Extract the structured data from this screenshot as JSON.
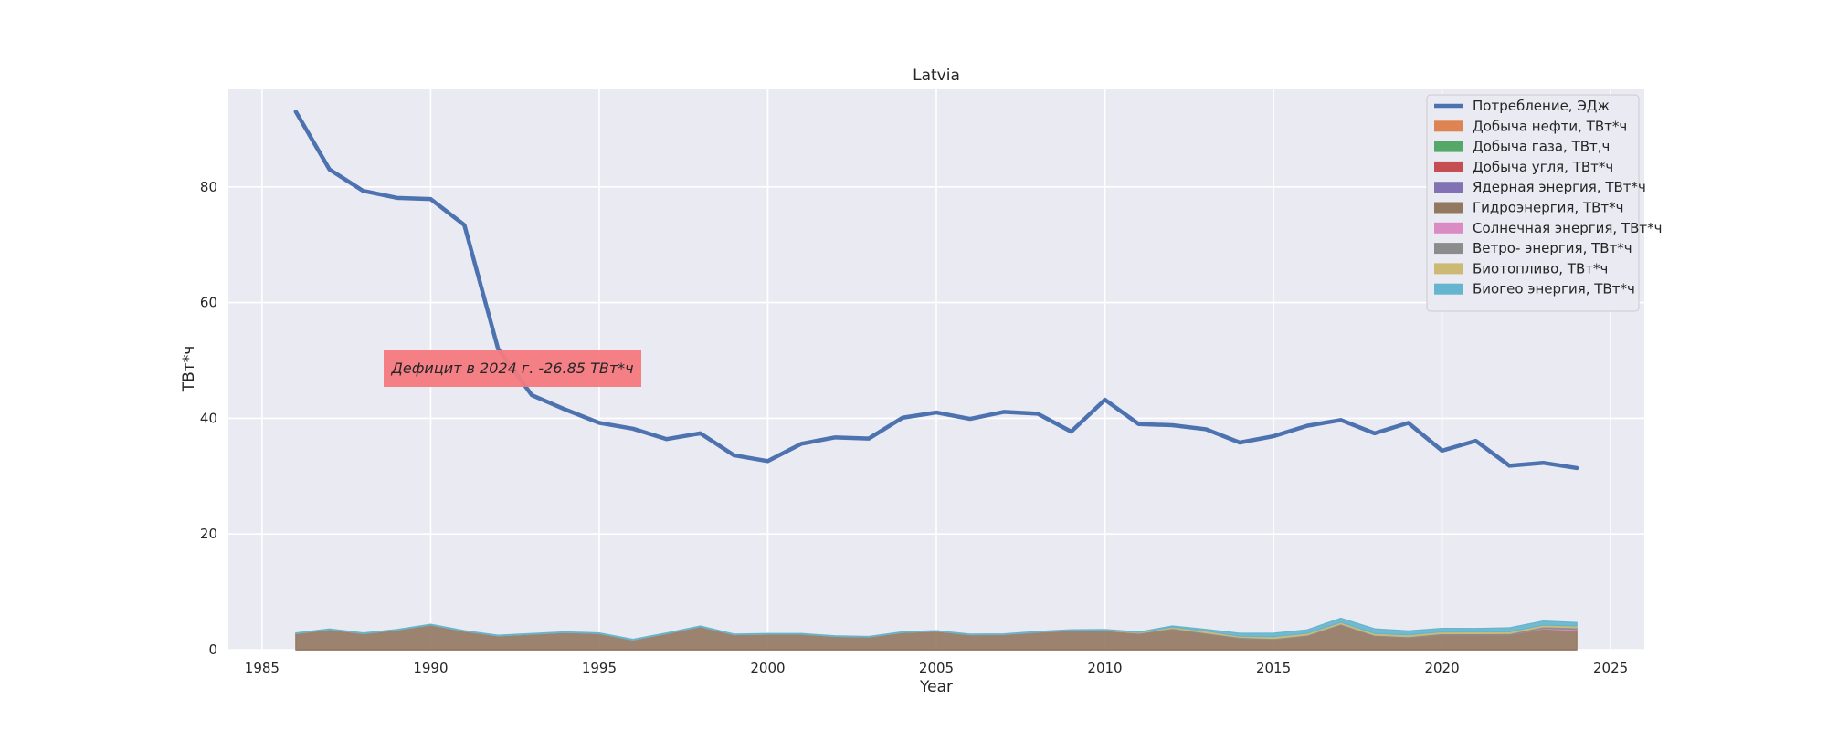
{
  "chart_data": {
    "type": "area",
    "title": "Latvia",
    "xlabel": "Year",
    "ylabel": "ТВт*ч",
    "xlim": [
      1984,
      2026
    ],
    "ylim": [
      0,
      97
    ],
    "xticks": [
      1985,
      1990,
      1995,
      2000,
      2005,
      2010,
      2015,
      2020,
      2025
    ],
    "yticks": [
      0,
      20,
      40,
      60,
      80
    ],
    "grid": true,
    "legend_position": "top-right",
    "annotation": {
      "text": "Дефицит в 2024 г. -26.85 ТВт*ч",
      "x": 1992.5,
      "y": 48.5,
      "color": "#f47a7f"
    },
    "x": [
      1986,
      1987,
      1988,
      1989,
      1990,
      1991,
      1992,
      1993,
      1994,
      1995,
      1996,
      1997,
      1998,
      1999,
      2000,
      2001,
      2002,
      2003,
      2004,
      2005,
      2006,
      2007,
      2008,
      2009,
      2010,
      2011,
      2012,
      2013,
      2014,
      2015,
      2016,
      2017,
      2018,
      2019,
      2020,
      2021,
      2022,
      2023,
      2024
    ],
    "line_series": {
      "name": "Потребление, ЭДж",
      "color": "#4c72b0",
      "values": [
        93.0,
        83.0,
        79.3,
        78.1,
        77.9,
        73.4,
        52.0,
        44.0,
        41.5,
        39.2,
        38.2,
        36.4,
        37.4,
        33.6,
        32.6,
        35.6,
        36.7,
        36.5,
        40.1,
        41.0,
        39.9,
        41.1,
        40.8,
        37.7,
        43.2,
        39.0,
        38.8,
        38.1,
        35.8,
        36.9,
        38.7,
        39.7,
        37.4,
        39.2,
        34.4,
        36.1,
        31.8,
        32.3,
        31.4
      ]
    },
    "area_series": [
      {
        "name": "Добыча нефти, ТВт*ч",
        "color": "#dd8452",
        "values": [
          0,
          0,
          0,
          0,
          0,
          0,
          0,
          0,
          0,
          0,
          0,
          0,
          0,
          0,
          0,
          0,
          0,
          0,
          0,
          0,
          0,
          0,
          0,
          0,
          0,
          0,
          0,
          0,
          0,
          0,
          0,
          0,
          0,
          0,
          0,
          0,
          0,
          0,
          0
        ]
      },
      {
        "name": "Добыча газа, ТВт,ч",
        "color": "#55a868",
        "values": [
          0,
          0,
          0,
          0,
          0,
          0,
          0,
          0,
          0,
          0,
          0,
          0,
          0,
          0,
          0,
          0,
          0,
          0,
          0,
          0,
          0,
          0,
          0,
          0,
          0,
          0,
          0,
          0,
          0,
          0,
          0,
          0,
          0,
          0,
          0,
          0,
          0,
          0,
          0
        ]
      },
      {
        "name": "Добыча угля, ТВт*ч",
        "color": "#c44e52",
        "values": [
          0,
          0,
          0,
          0,
          0,
          0,
          0,
          0,
          0,
          0,
          0,
          0,
          0,
          0,
          0,
          0,
          0,
          0,
          0,
          0,
          0,
          0,
          0,
          0,
          0,
          0,
          0,
          0,
          0,
          0,
          0,
          0,
          0,
          0,
          0,
          0,
          0,
          0,
          0
        ]
      },
      {
        "name": "Ядерная энергия, ТВт*ч",
        "color": "#8172b3",
        "values": [
          0,
          0,
          0,
          0,
          0,
          0,
          0,
          0,
          0,
          0,
          0,
          0,
          0,
          0,
          0,
          0,
          0,
          0,
          0,
          0,
          0,
          0,
          0,
          0,
          0,
          0,
          0,
          0,
          0,
          0,
          0,
          0,
          0,
          0,
          0,
          0,
          0,
          0,
          0
        ]
      },
      {
        "name": "Гидроэнергия, ТВт*ч",
        "color": "#937860",
        "values": [
          2.8,
          3.5,
          2.8,
          3.4,
          4.3,
          3.2,
          2.4,
          2.7,
          3.0,
          2.8,
          1.7,
          2.8,
          4.0,
          2.6,
          2.7,
          2.7,
          2.3,
          2.2,
          3.0,
          3.2,
          2.6,
          2.6,
          3.0,
          3.3,
          3.3,
          2.8,
          3.6,
          2.8,
          2.0,
          1.8,
          2.4,
          4.3,
          2.4,
          2.1,
          2.6,
          2.6,
          2.6,
          3.6,
          3.3
        ]
      },
      {
        "name": "Солнечная энергия, ТВт*ч",
        "color": "#da8bc3",
        "values": [
          0,
          0,
          0,
          0,
          0,
          0,
          0,
          0,
          0,
          0,
          0,
          0,
          0,
          0,
          0,
          0,
          0,
          0,
          0,
          0,
          0,
          0,
          0,
          0,
          0,
          0,
          0,
          0,
          0,
          0,
          0,
          0,
          0,
          0,
          0,
          0,
          0,
          0.1,
          0.2
        ]
      },
      {
        "name": "Ветро- энергия, ТВт*ч",
        "color": "#8c8c8c",
        "values": [
          0,
          0,
          0,
          0,
          0,
          0,
          0,
          0,
          0,
          0,
          0,
          0,
          0,
          0,
          0,
          0,
          0,
          0,
          0,
          0,
          0,
          0.05,
          0.05,
          0.05,
          0.05,
          0.07,
          0.1,
          0.12,
          0.14,
          0.15,
          0.13,
          0.15,
          0.12,
          0.16,
          0.2,
          0.17,
          0.19,
          0.25,
          0.3
        ]
      },
      {
        "name": "Биотопливо, ТВт*ч",
        "color": "#ccb974",
        "values": [
          0,
          0,
          0,
          0,
          0,
          0,
          0,
          0,
          0,
          0,
          0,
          0,
          0,
          0,
          0,
          0,
          0,
          0,
          0,
          0,
          0,
          0,
          0,
          0,
          0.05,
          0.1,
          0.2,
          0.3,
          0.2,
          0.3,
          0.3,
          0.3,
          0.3,
          0.3,
          0.3,
          0.3,
          0.3,
          0.3,
          0.3
        ]
      },
      {
        "name": "Биогео энергия, ТВт*ч",
        "color": "#64b5cd",
        "values": [
          0.1,
          0.1,
          0.1,
          0.1,
          0.1,
          0.1,
          0.1,
          0.1,
          0.1,
          0.1,
          0.1,
          0.1,
          0.1,
          0.1,
          0.1,
          0.1,
          0.1,
          0.1,
          0.1,
          0.1,
          0.1,
          0.1,
          0.1,
          0.1,
          0.1,
          0.1,
          0.2,
          0.3,
          0.5,
          0.6,
          0.6,
          0.7,
          0.8,
          0.7,
          0.6,
          0.6,
          0.7,
          0.7,
          0.6
        ]
      }
    ]
  }
}
